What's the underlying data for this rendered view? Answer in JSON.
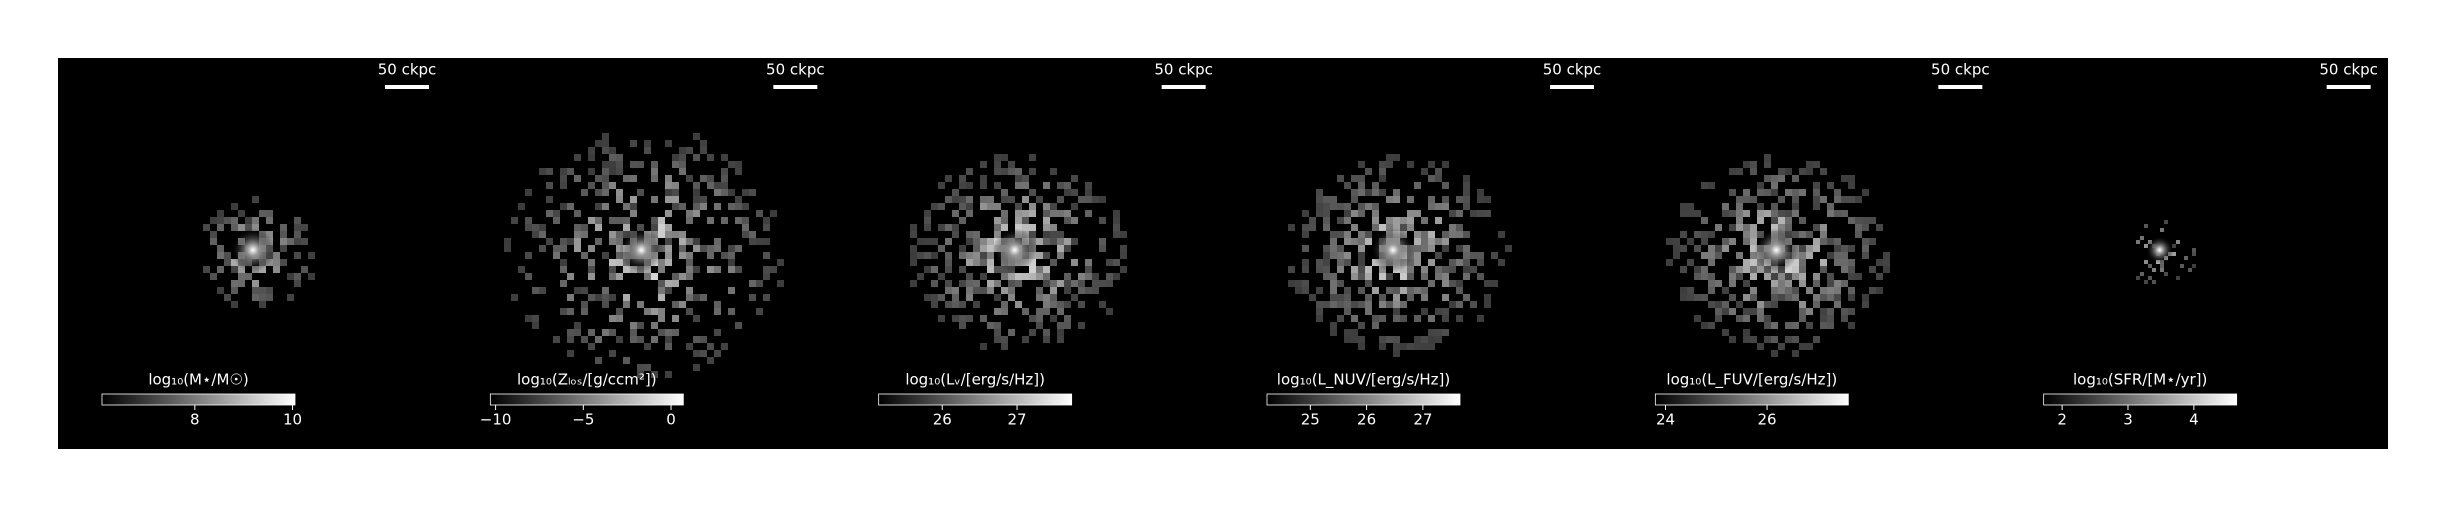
{
  "panels": [
    {
      "scale_label": "50 ckpc",
      "colorbar": {
        "label": "log₁₀(M⋆/M☉)",
        "lim": [
          6.1,
          10.05
        ],
        "ticks": [
          8,
          10
        ]
      }
    },
    {
      "scale_label": "50 ckpc",
      "colorbar": {
        "label": "log₁₀(Zₗₒₛ/[g/ccm²])",
        "lim": [
          -10.3,
          0.7
        ],
        "ticks": [
          {
            "value": -10,
            "label": "−10"
          },
          {
            "value": -5,
            "label": "−5"
          },
          0
        ]
      }
    },
    {
      "scale_label": "50 ckpc",
      "colorbar": {
        "label": "log₁₀(Lᵥ/[erg/s/Hz])",
        "lim": [
          25.15,
          27.73
        ],
        "ticks": [
          26,
          27
        ]
      }
    },
    {
      "scale_label": "50 ckpc",
      "colorbar": {
        "label": "log₁₀(L_NUV/[erg/s/Hz])",
        "lim": [
          24.23,
          27.66
        ],
        "ticks": [
          25,
          26,
          27
        ]
      }
    },
    {
      "scale_label": "50 ckpc",
      "colorbar": {
        "label": "log₁₀(L_FUV/[erg/s/Hz])",
        "lim": [
          23.8,
          27.6
        ],
        "ticks": [
          24,
          26
        ]
      }
    },
    {
      "scale_label": "50 ckpc",
      "colorbar": {
        "label": "log₁₀(SFR/[M⋆/yr])",
        "lim": [
          1.72,
          4.65
        ],
        "ticks": [
          2,
          3,
          4
        ]
      }
    }
  ]
}
